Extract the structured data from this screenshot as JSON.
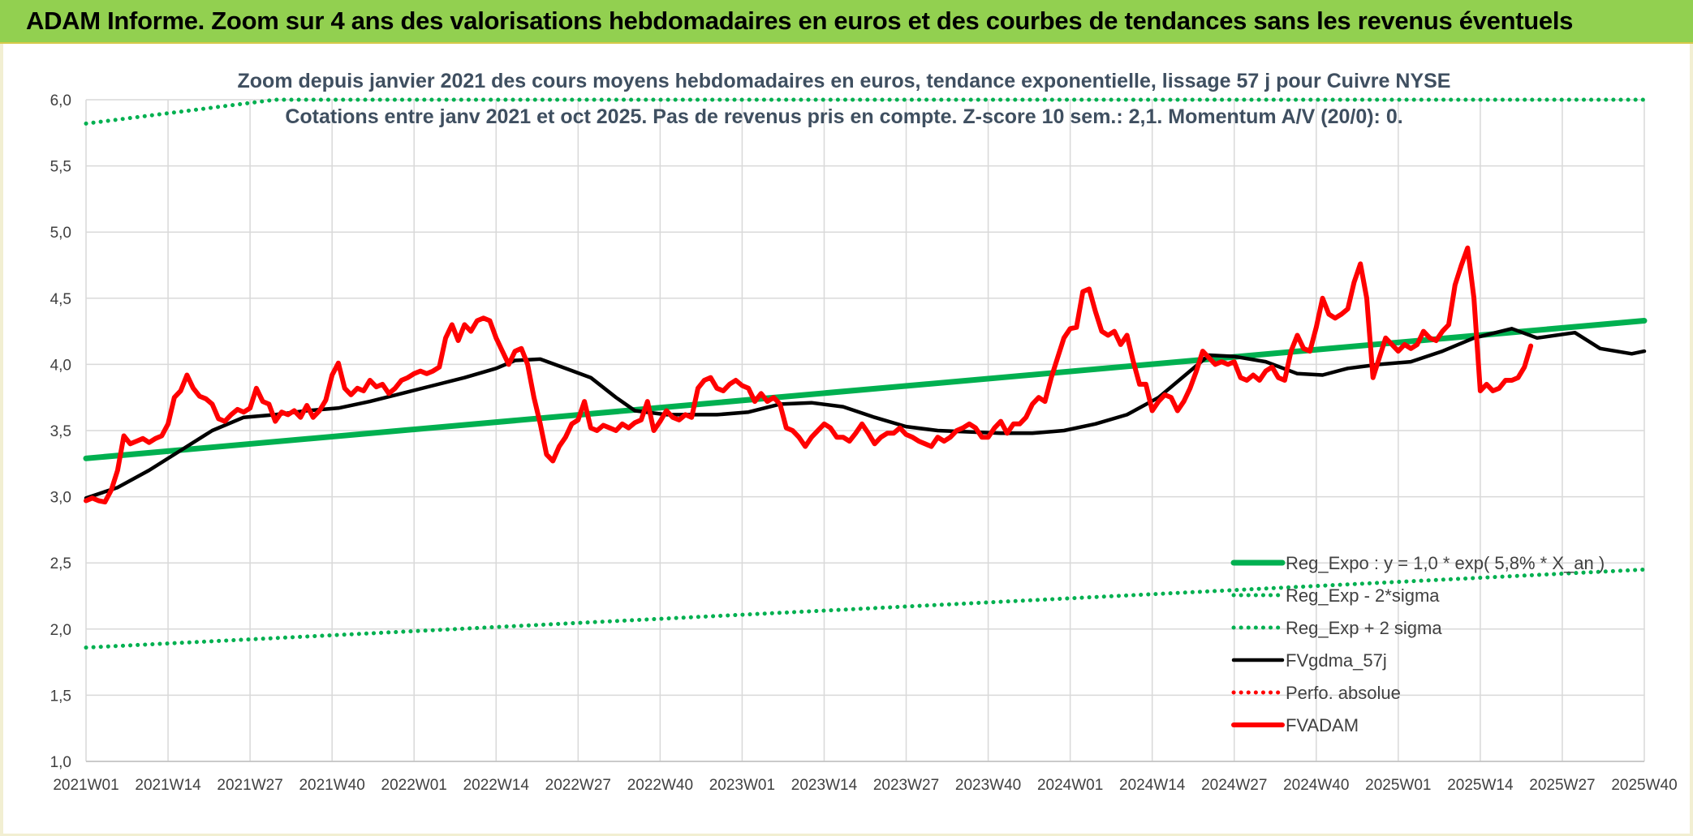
{
  "header": {
    "title": "ADAM Informe. Zoom sur 4 ans des valorisations hebdomadaires en euros et des courbes de tendances sans les revenus éventuels"
  },
  "colors": {
    "header_bg": "#92d050",
    "trend": "#00b050",
    "fvgdma": "#000000",
    "fvadam": "#ff0000",
    "perfo": "#ff0000"
  },
  "chart_data": {
    "type": "line",
    "title_line1": "Zoom depuis janvier 2021 des cours moyens hebdomadaires en euros, tendance exponentielle, lissage 57 j pour Cuivre NYSE",
    "title_line2": "Cotations entre janv 2021 et oct 2025. Pas de revenus pris en compte. Z-score 10 sem.: 2,1. Momentum A/V (20/0): 0.",
    "ylim": [
      1.0,
      6.0
    ],
    "y_ticks": [
      "1,0",
      "1,5",
      "2,0",
      "2,5",
      "3,0",
      "3,5",
      "4,0",
      "4,5",
      "5,0",
      "5,5",
      "6,0"
    ],
    "y_tick_values": [
      1.0,
      1.5,
      2.0,
      2.5,
      3.0,
      3.5,
      4.0,
      4.5,
      5.0,
      5.5,
      6.0
    ],
    "x_ticks": [
      "2021W01",
      "2021W14",
      "2021W27",
      "2021W40",
      "2022W01",
      "2022W14",
      "2022W27",
      "2022W40",
      "2023W01",
      "2023W14",
      "2023W27",
      "2023W40",
      "2024W01",
      "2024W14",
      "2024W27",
      "2024W40",
      "2025W01",
      "2025W14",
      "2025W27",
      "2025W40"
    ],
    "x_range_weeks": [
      0,
      247
    ],
    "legend_position": "bottom-right",
    "series": [
      {
        "name": "Reg_Expo : y = 1,0 * exp( 5,8% *  X_an )",
        "style": "solid-thick",
        "color": "#00b050",
        "points": [
          [
            0,
            3.29
          ],
          [
            247,
            4.33
          ]
        ]
      },
      {
        "name": "Reg_Exp - 2*sigma",
        "style": "dotted",
        "color": "#00b050",
        "points": [
          [
            0,
            1.86
          ],
          [
            247,
            2.45
          ]
        ]
      },
      {
        "name": "Reg_Exp + 2 sigma",
        "style": "dotted",
        "color": "#00b050",
        "points": [
          [
            0,
            5.82
          ],
          [
            30,
            6.0
          ],
          [
            247,
            6.0
          ]
        ]
      },
      {
        "name": "FVgdma_57j",
        "style": "solid",
        "color": "#000000",
        "points": [
          [
            0,
            2.99
          ],
          [
            5,
            3.07
          ],
          [
            10,
            3.2
          ],
          [
            15,
            3.35
          ],
          [
            20,
            3.5
          ],
          [
            25,
            3.6
          ],
          [
            30,
            3.62
          ],
          [
            35,
            3.65
          ],
          [
            40,
            3.67
          ],
          [
            45,
            3.72
          ],
          [
            50,
            3.78
          ],
          [
            55,
            3.84
          ],
          [
            60,
            3.9
          ],
          [
            65,
            3.97
          ],
          [
            68,
            4.03
          ],
          [
            72,
            4.04
          ],
          [
            76,
            3.97
          ],
          [
            80,
            3.9
          ],
          [
            84,
            3.75
          ],
          [
            87,
            3.65
          ],
          [
            92,
            3.62
          ],
          [
            100,
            3.62
          ],
          [
            105,
            3.64
          ],
          [
            110,
            3.7
          ],
          [
            115,
            3.71
          ],
          [
            120,
            3.68
          ],
          [
            125,
            3.6
          ],
          [
            130,
            3.53
          ],
          [
            135,
            3.5
          ],
          [
            140,
            3.49
          ],
          [
            145,
            3.48
          ],
          [
            150,
            3.48
          ],
          [
            155,
            3.5
          ],
          [
            160,
            3.55
          ],
          [
            165,
            3.62
          ],
          [
            170,
            3.75
          ],
          [
            175,
            3.95
          ],
          [
            178,
            4.07
          ],
          [
            182,
            4.06
          ],
          [
            187,
            4.02
          ],
          [
            192,
            3.93
          ],
          [
            196,
            3.92
          ],
          [
            200,
            3.97
          ],
          [
            205,
            4.0
          ],
          [
            210,
            4.02
          ],
          [
            215,
            4.1
          ],
          [
            220,
            4.2
          ],
          [
            226,
            4.27
          ],
          [
            230,
            4.2
          ],
          [
            236,
            4.24
          ],
          [
            240,
            4.12
          ],
          [
            245,
            4.08
          ],
          [
            247,
            4.1
          ]
        ]
      },
      {
        "name": "Perfo. absolue",
        "style": "dotted",
        "color": "#ff0000",
        "points": []
      },
      {
        "name": "FVADAM",
        "style": "solid-thick",
        "color": "#ff0000",
        "points": [
          [
            0,
            2.97
          ],
          [
            1,
            2.99
          ],
          [
            2,
            2.97
          ],
          [
            3,
            2.96
          ],
          [
            4,
            3.05
          ],
          [
            5,
            3.2
          ],
          [
            6,
            3.46
          ],
          [
            7,
            3.4
          ],
          [
            8,
            3.42
          ],
          [
            9,
            3.44
          ],
          [
            10,
            3.41
          ],
          [
            11,
            3.44
          ],
          [
            12,
            3.46
          ],
          [
            13,
            3.55
          ],
          [
            14,
            3.75
          ],
          [
            15,
            3.8
          ],
          [
            16,
            3.92
          ],
          [
            17,
            3.82
          ],
          [
            18,
            3.76
          ],
          [
            19,
            3.74
          ],
          [
            20,
            3.7
          ],
          [
            21,
            3.59
          ],
          [
            22,
            3.57
          ],
          [
            23,
            3.62
          ],
          [
            24,
            3.66
          ],
          [
            25,
            3.64
          ],
          [
            26,
            3.67
          ],
          [
            27,
            3.82
          ],
          [
            28,
            3.72
          ],
          [
            29,
            3.7
          ],
          [
            30,
            3.57
          ],
          [
            31,
            3.64
          ],
          [
            32,
            3.62
          ],
          [
            33,
            3.65
          ],
          [
            34,
            3.6
          ],
          [
            35,
            3.69
          ],
          [
            36,
            3.6
          ],
          [
            37,
            3.65
          ],
          [
            38,
            3.73
          ],
          [
            39,
            3.92
          ],
          [
            40,
            4.01
          ],
          [
            41,
            3.82
          ],
          [
            42,
            3.77
          ],
          [
            43,
            3.82
          ],
          [
            44,
            3.8
          ],
          [
            45,
            3.88
          ],
          [
            46,
            3.83
          ],
          [
            47,
            3.85
          ],
          [
            48,
            3.78
          ],
          [
            49,
            3.82
          ],
          [
            50,
            3.88
          ],
          [
            51,
            3.9
          ],
          [
            52,
            3.93
          ],
          [
            53,
            3.95
          ],
          [
            54,
            3.93
          ],
          [
            55,
            3.95
          ],
          [
            56,
            3.98
          ],
          [
            57,
            4.2
          ],
          [
            58,
            4.3
          ],
          [
            59,
            4.18
          ],
          [
            60,
            4.3
          ],
          [
            61,
            4.25
          ],
          [
            62,
            4.33
          ],
          [
            63,
            4.35
          ],
          [
            64,
            4.33
          ],
          [
            65,
            4.2
          ],
          [
            66,
            4.1
          ],
          [
            67,
            4.0
          ],
          [
            68,
            4.1
          ],
          [
            69,
            4.12
          ],
          [
            70,
            4.0
          ],
          [
            71,
            3.75
          ],
          [
            72,
            3.55
          ],
          [
            73,
            3.32
          ],
          [
            74,
            3.27
          ],
          [
            75,
            3.38
          ],
          [
            76,
            3.45
          ],
          [
            77,
            3.55
          ],
          [
            78,
            3.58
          ],
          [
            79,
            3.72
          ],
          [
            80,
            3.52
          ],
          [
            81,
            3.5
          ],
          [
            82,
            3.54
          ],
          [
            83,
            3.52
          ],
          [
            84,
            3.5
          ],
          [
            85,
            3.55
          ],
          [
            86,
            3.52
          ],
          [
            87,
            3.56
          ],
          [
            88,
            3.58
          ],
          [
            89,
            3.72
          ],
          [
            90,
            3.5
          ],
          [
            91,
            3.57
          ],
          [
            92,
            3.65
          ],
          [
            93,
            3.6
          ],
          [
            94,
            3.58
          ],
          [
            95,
            3.62
          ],
          [
            96,
            3.6
          ],
          [
            97,
            3.82
          ],
          [
            98,
            3.88
          ],
          [
            99,
            3.9
          ],
          [
            100,
            3.82
          ],
          [
            101,
            3.8
          ],
          [
            102,
            3.85
          ],
          [
            103,
            3.88
          ],
          [
            104,
            3.84
          ],
          [
            105,
            3.82
          ],
          [
            106,
            3.72
          ],
          [
            107,
            3.78
          ],
          [
            108,
            3.72
          ],
          [
            109,
            3.75
          ],
          [
            110,
            3.7
          ],
          [
            111,
            3.52
          ],
          [
            112,
            3.5
          ],
          [
            113,
            3.45
          ],
          [
            114,
            3.38
          ],
          [
            115,
            3.45
          ],
          [
            116,
            3.5
          ],
          [
            117,
            3.55
          ],
          [
            118,
            3.52
          ],
          [
            119,
            3.45
          ],
          [
            120,
            3.45
          ],
          [
            121,
            3.42
          ],
          [
            122,
            3.48
          ],
          [
            123,
            3.55
          ],
          [
            124,
            3.48
          ],
          [
            125,
            3.4
          ],
          [
            126,
            3.45
          ],
          [
            127,
            3.48
          ],
          [
            128,
            3.48
          ],
          [
            129,
            3.52
          ],
          [
            130,
            3.47
          ],
          [
            131,
            3.45
          ],
          [
            132,
            3.42
          ],
          [
            133,
            3.4
          ],
          [
            134,
            3.38
          ],
          [
            135,
            3.45
          ],
          [
            136,
            3.42
          ],
          [
            137,
            3.45
          ],
          [
            138,
            3.5
          ],
          [
            139,
            3.52
          ],
          [
            140,
            3.55
          ],
          [
            141,
            3.52
          ],
          [
            142,
            3.45
          ],
          [
            143,
            3.45
          ],
          [
            144,
            3.52
          ],
          [
            145,
            3.57
          ],
          [
            146,
            3.48
          ],
          [
            147,
            3.55
          ],
          [
            148,
            3.55
          ],
          [
            149,
            3.6
          ],
          [
            150,
            3.7
          ],
          [
            151,
            3.75
          ],
          [
            152,
            3.72
          ],
          [
            153,
            3.9
          ],
          [
            154,
            4.05
          ],
          [
            155,
            4.2
          ],
          [
            156,
            4.27
          ],
          [
            157,
            4.28
          ],
          [
            158,
            4.55
          ],
          [
            159,
            4.57
          ],
          [
            160,
            4.4
          ],
          [
            161,
            4.25
          ],
          [
            162,
            4.22
          ],
          [
            163,
            4.25
          ],
          [
            164,
            4.15
          ],
          [
            165,
            4.22
          ],
          [
            166,
            4.02
          ],
          [
            167,
            3.85
          ],
          [
            168,
            3.85
          ],
          [
            169,
            3.65
          ],
          [
            170,
            3.72
          ],
          [
            171,
            3.77
          ],
          [
            172,
            3.75
          ],
          [
            173,
            3.65
          ],
          [
            174,
            3.72
          ],
          [
            175,
            3.82
          ],
          [
            176,
            3.95
          ],
          [
            177,
            4.1
          ],
          [
            178,
            4.05
          ],
          [
            179,
            4.0
          ],
          [
            180,
            4.02
          ],
          [
            181,
            4.0
          ],
          [
            182,
            4.02
          ],
          [
            183,
            3.9
          ],
          [
            184,
            3.88
          ],
          [
            185,
            3.92
          ],
          [
            186,
            3.88
          ],
          [
            187,
            3.95
          ],
          [
            188,
            3.98
          ],
          [
            189,
            3.9
          ],
          [
            190,
            3.88
          ],
          [
            191,
            4.1
          ],
          [
            192,
            4.22
          ],
          [
            193,
            4.12
          ],
          [
            194,
            4.1
          ],
          [
            195,
            4.28
          ],
          [
            196,
            4.5
          ],
          [
            197,
            4.38
          ],
          [
            198,
            4.35
          ],
          [
            199,
            4.38
          ],
          [
            200,
            4.42
          ],
          [
            201,
            4.62
          ],
          [
            202,
            4.76
          ],
          [
            203,
            4.5
          ],
          [
            204,
            3.9
          ],
          [
            205,
            4.05
          ],
          [
            206,
            4.2
          ],
          [
            207,
            4.15
          ],
          [
            208,
            4.1
          ],
          [
            209,
            4.15
          ],
          [
            210,
            4.12
          ],
          [
            211,
            4.15
          ],
          [
            212,
            4.25
          ],
          [
            213,
            4.2
          ],
          [
            214,
            4.18
          ],
          [
            215,
            4.25
          ],
          [
            216,
            4.3
          ],
          [
            217,
            4.6
          ],
          [
            218,
            4.75
          ],
          [
            219,
            4.88
          ],
          [
            220,
            4.5
          ],
          [
            221,
            3.8
          ],
          [
            222,
            3.85
          ],
          [
            223,
            3.8
          ],
          [
            224,
            3.82
          ],
          [
            225,
            3.88
          ],
          [
            226,
            3.88
          ],
          [
            227,
            3.9
          ],
          [
            228,
            3.98
          ],
          [
            229,
            4.14
          ]
        ]
      }
    ]
  }
}
